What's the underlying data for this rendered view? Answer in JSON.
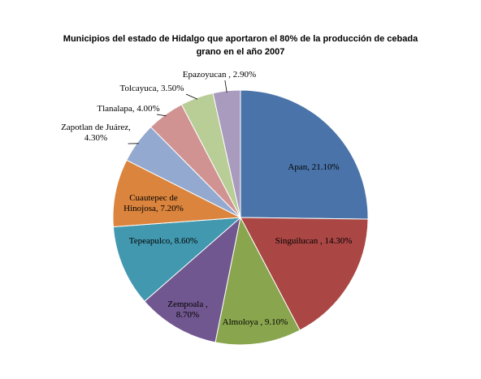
{
  "chart_data": {
    "type": "pie",
    "title_line1": "Municipios  del estado de Hidalgo  que aportaron el 80% de la producción de cebada",
    "title_line2": "grano en el año 2007",
    "slices": [
      {
        "label": "Apan, 21.10%",
        "label_lines": [
          "Apan, 21.10%"
        ],
        "value": 21.1,
        "color": "#4A74A9"
      },
      {
        "label": "Singuilucan , 14.30%",
        "label_lines": [
          "Singuilucan , 14.30%"
        ],
        "value": 14.3,
        "color": "#AA4644"
      },
      {
        "label": "Almoloya , 9.10%",
        "label_lines": [
          "Almoloya , 9.10%"
        ],
        "value": 9.1,
        "color": "#89A54E"
      },
      {
        "label": "Zempoala , 8.70%",
        "label_lines": [
          "Zempoala ,",
          "8.70%"
        ],
        "value": 8.7,
        "color": "#71578F"
      },
      {
        "label": "Tepeapulco, 8.60%",
        "label_lines": [
          "Tepeapulco, 8.60%"
        ],
        "value": 8.6,
        "color": "#4298AF"
      },
      {
        "label": "Cuautepec de Hinojosa, 7.20%",
        "label_lines": [
          "Cuautepec de",
          "Hinojosa, 7.20%"
        ],
        "value": 7.2,
        "color": "#DB843D"
      },
      {
        "label": "Zapotlan de Juárez, 4.30%",
        "label_lines": [
          "Zapotlan de Juárez,",
          "4.30%"
        ],
        "value": 4.3,
        "color": "#93A9CF"
      },
      {
        "label": "Tlanalapa, 4.00%",
        "label_lines": [
          "Tlanalapa, 4.00%"
        ],
        "value": 4.0,
        "color": "#D19392"
      },
      {
        "label": "Tolcayuca, 3.50%",
        "label_lines": [
          "Tolcayuca, 3.50%"
        ],
        "value": 3.5,
        "color": "#B9CD96"
      },
      {
        "label": "Epazoyucan , 2.90%",
        "label_lines": [
          "Epazoyucan , 2.90%"
        ],
        "value": 2.9,
        "color": "#A99BBD"
      }
    ],
    "legend": "none"
  }
}
